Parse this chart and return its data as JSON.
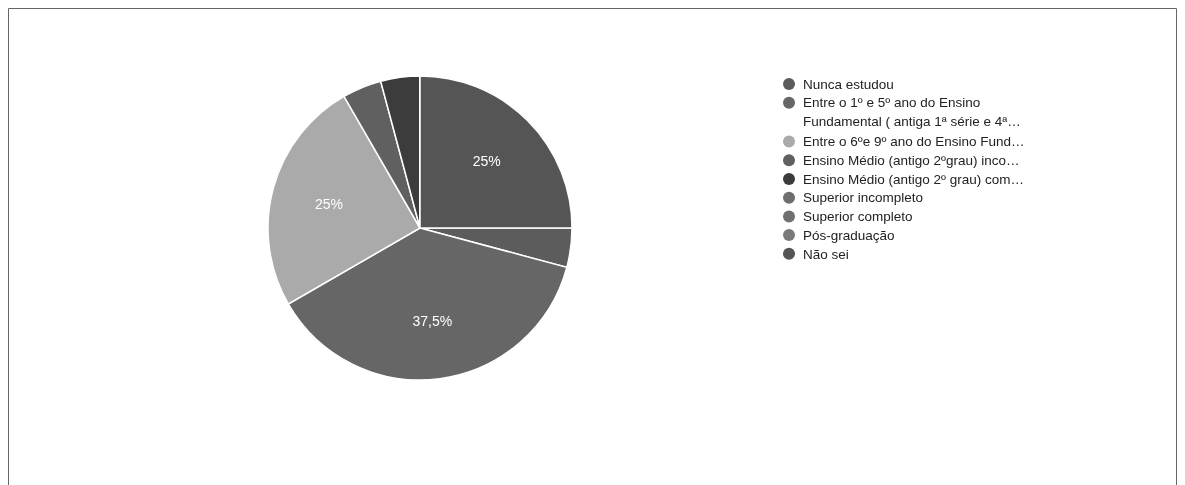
{
  "chart_data": {
    "type": "pie",
    "categories": [
      "Nunca estudou",
      [
        "Entre o 1º e 5º ano do Ensino",
        "Fundamental ( antiga 1ª série e 4ª…"
      ],
      "Entre o 6ºe 9º ano do Ensino Fund…",
      "Ensino Médio (antigo 2ºgrau) inco…",
      "Ensino Médio (antigo 2º grau) com…",
      "Superior incompleto",
      "Superior completo",
      "Pós-graduação",
      "Não sei"
    ],
    "values": [
      4.17,
      37.5,
      25,
      4.17,
      4.17,
      0,
      0,
      0,
      25
    ],
    "colors": [
      "#5c5c5c",
      "#666666",
      "#aaaaaa",
      "#606060",
      "#3c3c3c",
      "#6e6e6e",
      "#707070",
      "#7a7a7a",
      "#555555"
    ],
    "value_labels": [
      null,
      "37,5%",
      "25%",
      null,
      null,
      null,
      null,
      null,
      "25%"
    ],
    "legend": "right"
  }
}
